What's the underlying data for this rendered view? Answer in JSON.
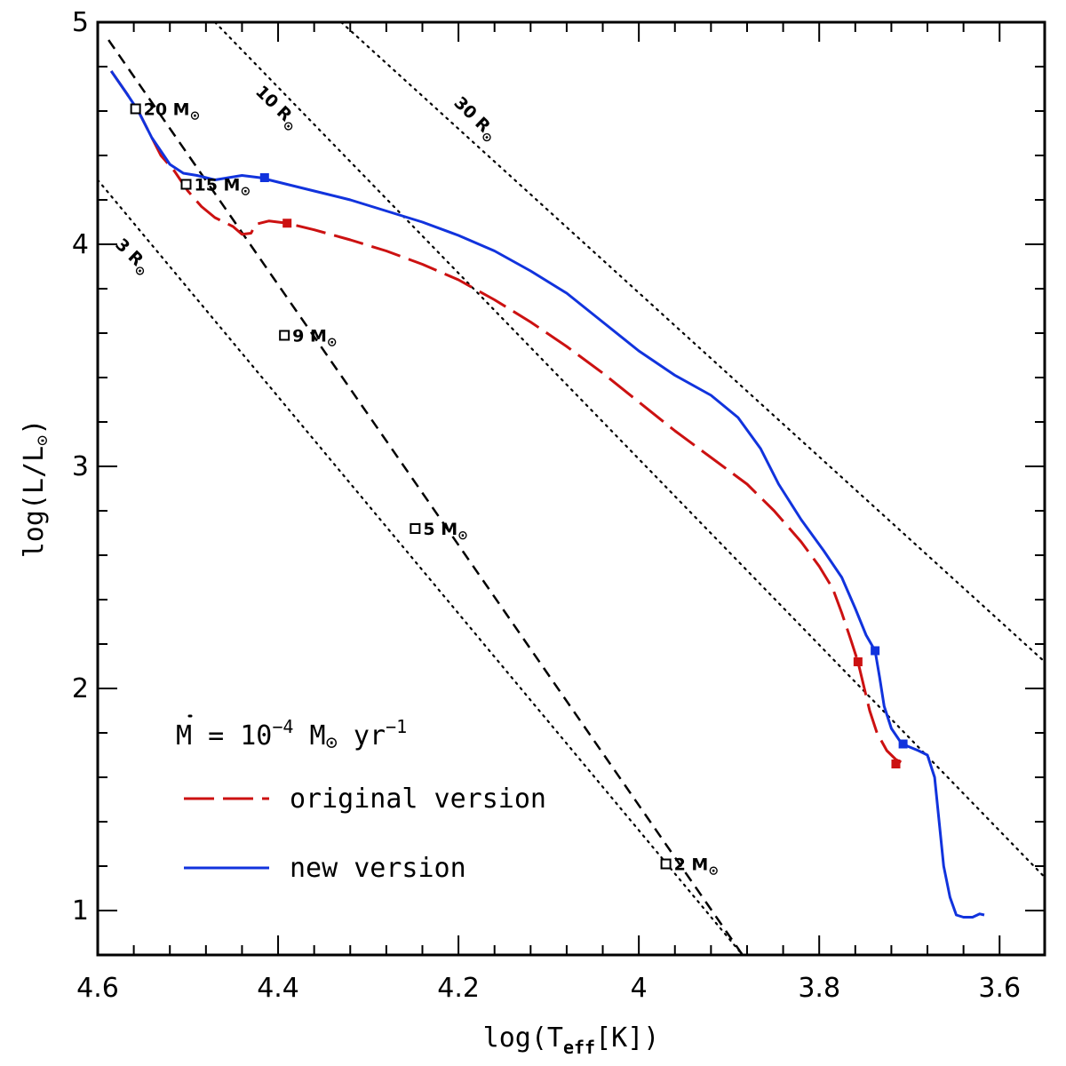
{
  "chart_data": {
    "type": "line",
    "xlabel": {
      "main": "log(T",
      "sub": "eff",
      "tail": "[K])"
    },
    "ylabel": {
      "main": "log(L/L",
      "sym": "⊙",
      "tail": ")"
    },
    "xlim": [
      4.6,
      3.55
    ],
    "ylim": [
      0.8,
      5.0
    ],
    "x_ticks": [
      {
        "value": 4.6,
        "label": "4.6"
      },
      {
        "value": 4.4,
        "label": "4.4"
      },
      {
        "value": 4.2,
        "label": "4.2"
      },
      {
        "value": 4.0,
        "label": "4"
      },
      {
        "value": 3.8,
        "label": "3.8"
      },
      {
        "value": 3.6,
        "label": "3.6"
      }
    ],
    "y_ticks": [
      {
        "value": 1,
        "label": "1"
      },
      {
        "value": 2,
        "label": "2"
      },
      {
        "value": 3,
        "label": "3"
      },
      {
        "value": 4,
        "label": "4"
      },
      {
        "value": 5,
        "label": "5"
      }
    ],
    "legend": {
      "placement": "bottom-left",
      "title": {
        "M": "M",
        "eq": " = 10",
        "exp": "−4",
        "unit": " M",
        "sym": "⊙",
        "yr": " yr",
        "yrexp": "−1"
      },
      "entries": [
        {
          "key": "original",
          "label": "original version",
          "color": "#cc1111",
          "dash": "long-dash"
        },
        {
          "key": "new",
          "label": "new version",
          "color": "#1133dd",
          "dash": "solid"
        }
      ]
    },
    "series": [
      {
        "key": "original",
        "color": "#cc1111",
        "style": "long-dash",
        "points": [
          [
            4.585,
            4.78
          ],
          [
            4.568,
            4.68
          ],
          [
            4.555,
            4.6
          ],
          [
            4.54,
            4.48
          ],
          [
            4.53,
            4.4
          ],
          [
            4.515,
            4.33
          ],
          [
            4.5,
            4.24
          ],
          [
            4.485,
            4.17
          ],
          [
            4.47,
            4.12
          ],
          [
            4.45,
            4.08
          ],
          [
            4.44,
            4.045
          ],
          [
            4.43,
            4.05
          ],
          [
            4.425,
            4.09
          ],
          [
            4.41,
            4.105
          ],
          [
            4.39,
            4.095
          ],
          [
            4.36,
            4.065
          ],
          [
            4.32,
            4.02
          ],
          [
            4.28,
            3.97
          ],
          [
            4.24,
            3.91
          ],
          [
            4.2,
            3.84
          ],
          [
            4.16,
            3.75
          ],
          [
            4.12,
            3.65
          ],
          [
            4.08,
            3.54
          ],
          [
            4.04,
            3.42
          ],
          [
            4.0,
            3.29
          ],
          [
            3.96,
            3.16
          ],
          [
            3.92,
            3.04
          ],
          [
            3.88,
            2.92
          ],
          [
            3.85,
            2.8
          ],
          [
            3.82,
            2.66
          ],
          [
            3.8,
            2.55
          ],
          [
            3.785,
            2.45
          ],
          [
            3.775,
            2.34
          ],
          [
            3.765,
            2.22
          ],
          [
            3.757,
            2.12
          ],
          [
            3.75,
            2.0
          ],
          [
            3.744,
            1.9
          ],
          [
            3.736,
            1.8
          ],
          [
            3.725,
            1.72
          ],
          [
            3.715,
            1.68
          ],
          [
            3.705,
            1.66
          ]
        ]
      },
      {
        "key": "new",
        "color": "#1133dd",
        "style": "solid",
        "points": [
          [
            4.585,
            4.78
          ],
          [
            4.568,
            4.68
          ],
          [
            4.555,
            4.6
          ],
          [
            4.54,
            4.48
          ],
          [
            4.53,
            4.42
          ],
          [
            4.52,
            4.36
          ],
          [
            4.505,
            4.32
          ],
          [
            4.49,
            4.31
          ],
          [
            4.47,
            4.29
          ],
          [
            4.455,
            4.3
          ],
          [
            4.44,
            4.31
          ],
          [
            4.42,
            4.3
          ],
          [
            4.4,
            4.28
          ],
          [
            4.36,
            4.24
          ],
          [
            4.32,
            4.2
          ],
          [
            4.28,
            4.15
          ],
          [
            4.24,
            4.1
          ],
          [
            4.2,
            4.04
          ],
          [
            4.16,
            3.97
          ],
          [
            4.12,
            3.88
          ],
          [
            4.08,
            3.78
          ],
          [
            4.04,
            3.65
          ],
          [
            4.0,
            3.52
          ],
          [
            3.96,
            3.41
          ],
          [
            3.92,
            3.32
          ],
          [
            3.89,
            3.22
          ],
          [
            3.865,
            3.08
          ],
          [
            3.845,
            2.92
          ],
          [
            3.82,
            2.76
          ],
          [
            3.795,
            2.62
          ],
          [
            3.775,
            2.5
          ],
          [
            3.76,
            2.36
          ],
          [
            3.748,
            2.24
          ],
          [
            3.738,
            2.17
          ],
          [
            3.733,
            2.05
          ],
          [
            3.728,
            1.92
          ],
          [
            3.72,
            1.82
          ],
          [
            3.71,
            1.76
          ],
          [
            3.702,
            1.74
          ],
          [
            3.69,
            1.72
          ],
          [
            3.68,
            1.7
          ],
          [
            3.672,
            1.6
          ],
          [
            3.667,
            1.4
          ],
          [
            3.662,
            1.2
          ],
          [
            3.655,
            1.06
          ],
          [
            3.648,
            0.98
          ],
          [
            3.64,
            0.97
          ],
          [
            3.63,
            0.97
          ],
          [
            3.622,
            0.985
          ],
          [
            3.617,
            0.98
          ]
        ]
      }
    ],
    "markers": [
      {
        "series": "original",
        "points": [
          [
            4.39,
            4.095
          ],
          [
            3.757,
            2.12
          ],
          [
            3.715,
            1.66
          ]
        ]
      },
      {
        "series": "new",
        "points": [
          [
            4.415,
            4.3
          ],
          [
            3.738,
            2.17
          ],
          [
            3.707,
            1.75
          ]
        ]
      }
    ],
    "zams_line": {
      "style": "short-dash",
      "from": [
        4.588,
        4.92
      ],
      "to": [
        3.885,
        0.8
      ]
    },
    "radius_lines": [
      {
        "label": "3 R",
        "sym": "⊙",
        "from": [
          4.6,
          4.29
        ],
        "to": [
          3.885,
          0.8
        ],
        "label_at": [
          4.565,
          3.93
        ]
      },
      {
        "label": "10 R",
        "sym": "⊙",
        "from": [
          4.47,
          5.0
        ],
        "to": [
          3.55,
          1.15
        ],
        "label_at": [
          4.405,
          4.6
        ]
      },
      {
        "label": "30 R",
        "sym": "⊙",
        "from": [
          4.33,
          5.0
        ],
        "to": [
          3.55,
          2.12
        ],
        "label_at": [
          4.185,
          4.55
        ]
      }
    ],
    "mass_points": [
      {
        "label": "20 M",
        "sym": "⊙",
        "x": 4.558,
        "y": 4.61
      },
      {
        "label": "15 M",
        "sym": "⊙",
        "x": 4.502,
        "y": 4.27
      },
      {
        "label": "9 M",
        "sym": "⊙",
        "x": 4.393,
        "y": 3.59
      },
      {
        "label": "5 M",
        "sym": "⊙",
        "x": 4.248,
        "y": 2.72
      },
      {
        "label": "2 M",
        "sym": "⊙",
        "x": 3.97,
        "y": 1.21
      }
    ]
  }
}
